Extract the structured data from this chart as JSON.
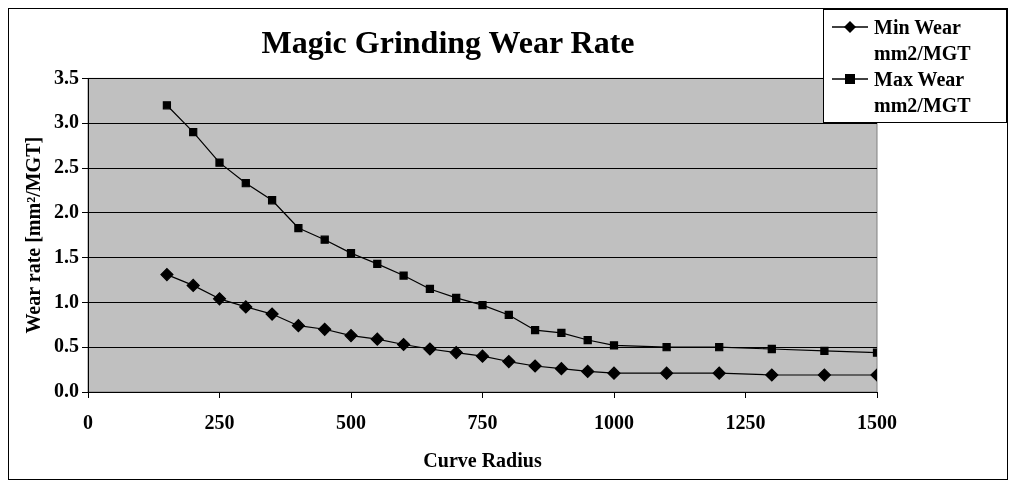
{
  "chart_data": {
    "type": "line",
    "title": "Magic Grinding Wear Rate",
    "xlabel": "Curve Radius",
    "ylabel": "Wear rate [mm²/MGT]",
    "xlim": [
      0,
      1500
    ],
    "xticks": [
      0,
      250,
      500,
      750,
      1000,
      1250,
      1500
    ],
    "ylim": [
      0,
      3.5
    ],
    "yticks": [
      {
        "value": 0,
        "label": "0.0"
      },
      0.5,
      {
        "value": 1,
        "label": "1.0"
      },
      1.5,
      {
        "value": 2,
        "label": "2.0"
      },
      2.5,
      {
        "value": 3,
        "label": "3.0"
      },
      3.5
    ],
    "grid": "y",
    "legend": "top right",
    "x": [
      150,
      200,
      250,
      300,
      350,
      400,
      450,
      500,
      550,
      600,
      650,
      700,
      750,
      800,
      850,
      900,
      950,
      1000,
      1100,
      1200,
      1300,
      1400,
      1500
    ],
    "series": [
      {
        "name": "Min Wear mm2/MGT",
        "color": "#000000",
        "marker": "diamond",
        "values": [
          1.31,
          1.19,
          1.04,
          0.95,
          0.87,
          0.74,
          0.7,
          0.63,
          0.59,
          0.53,
          0.48,
          0.44,
          0.4,
          0.34,
          0.29,
          0.26,
          0.23,
          0.21,
          0.21,
          0.21,
          0.19,
          0.19,
          0.19
        ]
      },
      {
        "name": "Max Wear mm2/MGT",
        "color": "#000000",
        "marker": "square",
        "values": [
          3.2,
          2.9,
          2.56,
          2.33,
          2.14,
          1.83,
          1.7,
          1.55,
          1.43,
          1.3,
          1.15,
          1.05,
          0.97,
          0.86,
          0.69,
          0.66,
          0.58,
          0.52,
          0.5,
          0.5,
          0.48,
          0.46,
          0.44
        ]
      }
    ]
  }
}
